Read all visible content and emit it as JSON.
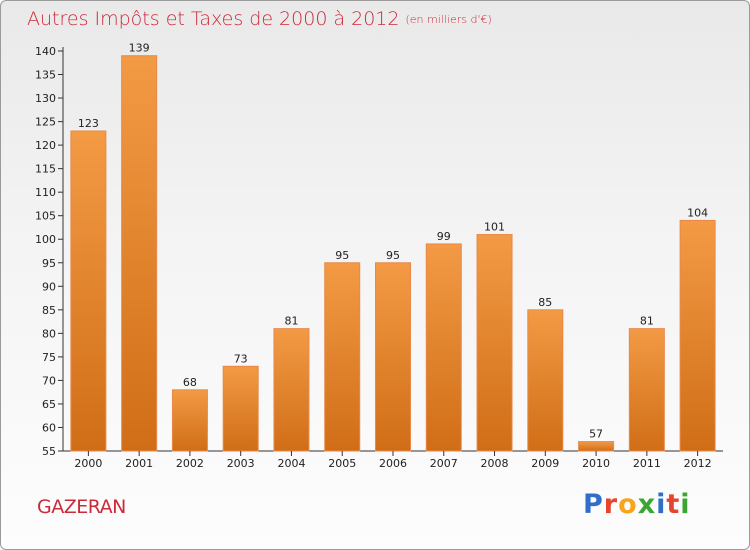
{
  "title": {
    "main": "Autres Impôts et Taxes de 2000 à 2012",
    "unit": "(en milliers d'€)"
  },
  "commune": "GAZERAN",
  "logo": {
    "letters": [
      "P",
      "r",
      "o",
      "x",
      "i",
      "t",
      "i"
    ],
    "colors": [
      "#2f6fc9",
      "#e8432e",
      "#f7a51c",
      "#3aa532",
      "#2f6fc9",
      "#e8432e",
      "#3aa532"
    ]
  },
  "colors": {
    "bar": "#f39a45",
    "bar_dark": "#d06e17",
    "title": "#cc2a3a"
  },
  "chart_data": {
    "type": "bar",
    "title": "Autres Impôts et Taxes de 2000 à 2012",
    "subtitle": "(en milliers d'€)",
    "xlabel": "",
    "ylabel": "",
    "categories": [
      "2000",
      "2001",
      "2002",
      "2003",
      "2004",
      "2005",
      "2006",
      "2007",
      "2008",
      "2009",
      "2010",
      "2011",
      "2012"
    ],
    "values": [
      123,
      139,
      68,
      73,
      81,
      95,
      95,
      99,
      101,
      85,
      57,
      81,
      104
    ],
    "ylim": [
      55,
      140
    ],
    "yticks": [
      55,
      60,
      65,
      70,
      75,
      80,
      85,
      90,
      95,
      100,
      105,
      110,
      115,
      120,
      125,
      130,
      135,
      140
    ],
    "grid": false,
    "legend": "none"
  }
}
